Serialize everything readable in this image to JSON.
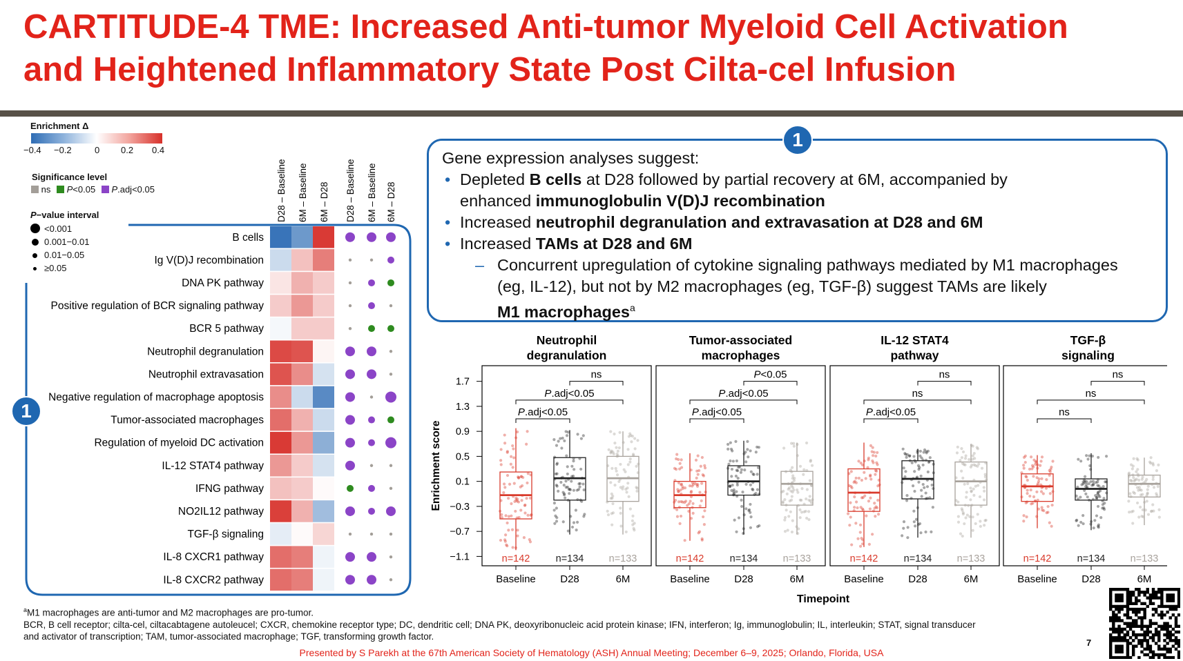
{
  "slide": {
    "title_line1": "CARTITUDE-4 TME: Increased Anti-tumor Myeloid Cell Activation",
    "title_line2": "and Heightened Inflammatory State Post Cilta-cel Infusion",
    "page_number": "7",
    "presented": "Presented by S Parekh at the 67th American Society of Hematology (ASH) Annual Meeting; December 6–9, 2025; Orlando, Florida, USA",
    "footnote1_sup": "a",
    "footnote1": "M1 macrophages are anti-tumor and M2 macrophages are pro-tumor.",
    "footnote2": "BCR, B cell receptor; cilta-cel, ciltacabtagene autoleucel; CXCR, chemokine receptor type; DC, dendritic cell; DNA PK, deoxyribonucleic acid protein kinase; IFN, interferon; Ig, immunoglobulin; IL, interleukin; STAT, signal transducer",
    "footnote3": "and activator of transcription; TAM, tumor-associated macrophage; TGF, transforming growth factor.",
    "badge_label": "1"
  },
  "legend": {
    "enrichment_title": "Enrichment Δ",
    "enrichment_ticks": [
      "−0.4",
      "−0.2",
      "0",
      "0.2",
      "0.4"
    ],
    "significance_title": "Significance level",
    "significance_items": [
      {
        "label": "ns",
        "italic": "",
        "color": "#a39e98"
      },
      {
        "label": "<0.05",
        "italic": "P",
        "color": "#2e8b1f"
      },
      {
        "label": ".adj<0.05",
        "italic": "P",
        "color": "#8b44c7"
      }
    ],
    "pvalue_title_italic": "P",
    "pvalue_title_rest": "−value interval",
    "pvalue_items": [
      "<0.001",
      "0.001−0.01",
      "0.01−0.05",
      "≥0.05"
    ]
  },
  "gene_box": {
    "intro": "Gene expression analyses suggest:",
    "b1_pre": "Depleted ",
    "b1_bold1": "B cells",
    "b1_mid": " at D28 followed by partial recovery at 6M, accompanied by",
    "b1_line2_pre": "enhanced ",
    "b1_bold2": "immunoglobulin V(D)J recombination",
    "b2_pre": "Increased ",
    "b2_bold": "neutrophil degranulation and extravasation at D28 and 6M",
    "b3_pre": "Increased ",
    "b3_bold": "TAMs at D28 and 6M",
    "sub_line1": "Concurrent upregulation of cytokine signaling pathways mediated by M1 macrophages",
    "sub_line2": "(eg, IL-12), but not by M2 macrophages (eg, TGF-β) suggest TAMs are likely",
    "sub_bold": "M1 macrophages",
    "sub_sup": "a"
  },
  "chart_data": [
    {
      "type": "heatmap",
      "title": "",
      "columns": [
        "D28 – Baseline",
        "6M – Baseline",
        "6M – D28"
      ],
      "dot_columns": [
        "D28 – Baseline",
        "6M – Baseline",
        "6M – D28"
      ],
      "color_range": [
        -0.4,
        0.4
      ],
      "rows": [
        "B cells",
        "Ig V(D)J recombination",
        "DNA PK pathway",
        "Positive regulation of BCR signaling pathway",
        "BCR 5 pathway",
        "Neutrophil degranulation",
        "Neutrophil extravasation",
        "Negative regulation of macrophage apoptosis",
        "Tumor-associated macrophages",
        "Regulation of myeloid DC activation",
        "IL-12 STAT4 pathway",
        "IFNG pathway",
        "NO2IL12 pathway",
        "TGF-β signaling",
        "IL-8 CXCR1 pathway",
        "IL-8 CXCR2 pathway"
      ],
      "values": [
        [
          -0.38,
          -0.28,
          0.38
        ],
        [
          -0.1,
          0.12,
          0.25
        ],
        [
          0.05,
          0.15,
          0.1
        ],
        [
          0.1,
          0.2,
          0.1
        ],
        [
          -0.02,
          0.1,
          0.1
        ],
        [
          0.35,
          0.33,
          0.02
        ],
        [
          0.33,
          0.22,
          -0.08
        ],
        [
          0.22,
          -0.1,
          -0.32
        ],
        [
          0.28,
          0.15,
          -0.1
        ],
        [
          0.38,
          0.2,
          -0.22
        ],
        [
          0.2,
          0.1,
          -0.08
        ],
        [
          0.12,
          0.1,
          0.01
        ],
        [
          0.37,
          0.15,
          -0.18
        ],
        [
          -0.05,
          0.01,
          0.08
        ],
        [
          0.28,
          0.25,
          -0.03
        ],
        [
          0.28,
          0.25,
          -0.03
        ]
      ],
      "significance": [
        [
          "padj",
          "padj",
          "padj"
        ],
        [
          "ns",
          "ns",
          "padj"
        ],
        [
          "ns",
          "padj",
          "p"
        ],
        [
          "ns",
          "padj",
          "ns"
        ],
        [
          "ns",
          "p",
          "p"
        ],
        [
          "padj",
          "padj",
          "ns"
        ],
        [
          "padj",
          "padj",
          "ns"
        ],
        [
          "padj",
          "ns",
          "padj"
        ],
        [
          "padj",
          "padj",
          "p"
        ],
        [
          "padj",
          "padj",
          "padj"
        ],
        [
          "padj",
          "ns",
          "ns"
        ],
        [
          "p",
          "padj",
          "ns"
        ],
        [
          "padj",
          "padj",
          "padj"
        ],
        [
          "ns",
          "ns",
          "ns"
        ],
        [
          "padj",
          "padj",
          "ns"
        ],
        [
          "padj",
          "padj",
          "ns"
        ]
      ],
      "pvalue_interval": [
        [
          2,
          2,
          2
        ],
        [
          4,
          4,
          3
        ],
        [
          4,
          3,
          3
        ],
        [
          4,
          3,
          4
        ],
        [
          4,
          3,
          3
        ],
        [
          2,
          2,
          4
        ],
        [
          2,
          2,
          4
        ],
        [
          2,
          4,
          1
        ],
        [
          2,
          3,
          3
        ],
        [
          2,
          3,
          1
        ],
        [
          2,
          4,
          4
        ],
        [
          3,
          3,
          4
        ],
        [
          2,
          3,
          2
        ],
        [
          4,
          4,
          4
        ],
        [
          2,
          2,
          4
        ],
        [
          2,
          2,
          4
        ]
      ]
    },
    {
      "type": "box",
      "ylabel": "Enrichment score",
      "xlabel": "Timepoint",
      "ylim": [
        -1.25,
        1.95
      ],
      "yticks": [
        "1.7",
        "1.3",
        "0.9",
        "0.5",
        "0.1",
        "−0.3",
        "−0.7",
        "−1.1"
      ],
      "ytick_values": [
        1.7,
        1.3,
        0.9,
        0.5,
        0.1,
        -0.3,
        -0.7,
        -1.1
      ],
      "categories": [
        "Baseline",
        "D28",
        "6M"
      ],
      "counts": [
        "n=142",
        "n=134",
        "n=133"
      ],
      "colors": [
        "#d93a2b",
        "#222222",
        "#a8a29c"
      ],
      "panels": [
        {
          "title_line1": "Neutrophil",
          "title_line2": "degranulation",
          "boxes": [
            {
              "min": -1.0,
              "q1": -0.5,
              "median": -0.12,
              "q3": 0.25,
              "max": 0.95
            },
            {
              "min": -0.75,
              "q1": -0.2,
              "median": 0.15,
              "q3": 0.48,
              "max": 0.92
            },
            {
              "min": -0.75,
              "q1": -0.22,
              "median": 0.15,
              "q3": 0.5,
              "max": 0.9
            }
          ],
          "brackets": [
            {
              "label_italic": "",
              "label": "ns",
              "from": 1,
              "to": 2,
              "y": 1.7
            },
            {
              "label_italic": "P",
              "label": ".adj<0.05",
              "from": 0,
              "to": 2,
              "y": 1.4
            },
            {
              "label_italic": "P",
              "label": ".adj<0.05",
              "from": 0,
              "to": 1,
              "y": 1.1
            }
          ]
        },
        {
          "title_line1": "Tumor-associated",
          "title_line2": "macrophages",
          "boxes": [
            {
              "min": -0.85,
              "q1": -0.32,
              "median": -0.12,
              "q3": 0.1,
              "max": 0.55
            },
            {
              "min": -0.75,
              "q1": -0.12,
              "median": 0.1,
              "q3": 0.35,
              "max": 0.75
            },
            {
              "min": -0.75,
              "q1": -0.28,
              "median": 0.06,
              "q3": 0.26,
              "max": 0.72
            }
          ],
          "brackets": [
            {
              "label_italic": "P",
              "label": "<0.05",
              "from": 1,
              "to": 2,
              "y": 1.7
            },
            {
              "label_italic": "P",
              "label": ".adj<0.05",
              "from": 0,
              "to": 2,
              "y": 1.4
            },
            {
              "label_italic": "P",
              "label": ".adj<0.05",
              "from": 0,
              "to": 1,
              "y": 1.1
            }
          ]
        },
        {
          "title_line1": "IL-12 STAT4",
          "title_line2": "pathway",
          "boxes": [
            {
              "min": -0.95,
              "q1": -0.38,
              "median": -0.08,
              "q3": 0.3,
              "max": 0.72
            },
            {
              "min": -0.8,
              "q1": -0.18,
              "median": 0.14,
              "q3": 0.43,
              "max": 0.62
            },
            {
              "min": -0.8,
              "q1": -0.28,
              "median": 0.1,
              "q3": 0.41,
              "max": 0.7
            }
          ],
          "brackets": [
            {
              "label_italic": "",
              "label": "ns",
              "from": 1,
              "to": 2,
              "y": 1.7
            },
            {
              "label_italic": "",
              "label": "ns",
              "from": 0,
              "to": 2,
              "y": 1.4
            },
            {
              "label_italic": "P",
              "label": ".adj<0.05",
              "from": 0,
              "to": 1,
              "y": 1.1
            }
          ]
        },
        {
          "title_line1": "TGF-β",
          "title_line2": "signaling",
          "boxes": [
            {
              "min": -0.65,
              "q1": -0.22,
              "median": 0.02,
              "q3": 0.22,
              "max": 0.52
            },
            {
              "min": -0.68,
              "q1": -0.2,
              "median": -0.02,
              "q3": 0.14,
              "max": 0.55
            },
            {
              "min": -0.6,
              "q1": -0.15,
              "median": 0.06,
              "q3": 0.2,
              "max": 0.48
            }
          ],
          "brackets": [
            {
              "label_italic": "",
              "label": "ns",
              "from": 1,
              "to": 2,
              "y": 1.7
            },
            {
              "label_italic": "",
              "label": "ns",
              "from": 0,
              "to": 2,
              "y": 1.4
            },
            {
              "label_italic": "",
              "label": "ns",
              "from": 0,
              "to": 1,
              "y": 1.1
            }
          ]
        }
      ]
    }
  ]
}
